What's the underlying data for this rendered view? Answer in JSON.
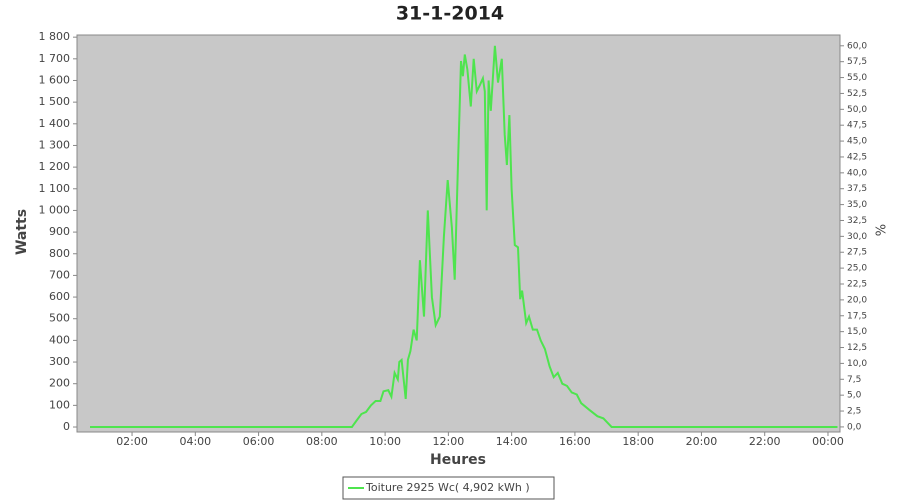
{
  "chart_data": {
    "type": "line",
    "title": "31-1-2014",
    "x_label": "Heures",
    "y_label": "Watts",
    "y2_label": "%",
    "x": [
      0.67,
      8.95,
      9.1,
      9.25,
      9.4,
      9.55,
      9.7,
      9.85,
      9.95,
      10.1,
      10.2,
      10.3,
      10.4,
      10.45,
      10.52,
      10.6,
      10.65,
      10.72,
      10.8,
      10.9,
      11.0,
      11.1,
      11.23,
      11.35,
      11.48,
      11.6,
      11.73,
      11.86,
      11.98,
      12.11,
      12.2,
      12.3,
      12.4,
      12.46,
      12.52,
      12.6,
      12.71,
      12.8,
      12.9,
      13.0,
      13.09,
      13.15,
      13.21,
      13.27,
      13.34,
      13.47,
      13.57,
      13.69,
      13.78,
      13.85,
      13.93,
      14.0,
      14.1,
      14.2,
      14.27,
      14.33,
      14.46,
      14.55,
      14.67,
      14.8,
      14.92,
      15.05,
      15.2,
      15.33,
      15.46,
      15.6,
      15.75,
      15.9,
      16.06,
      16.2,
      16.45,
      16.71,
      16.9,
      17.03,
      17.16,
      24.3
    ],
    "series": [
      {
        "name": "Toiture 2925 Wc( 4,902 kWh )",
        "color": "#4ee44e",
        "values": [
          0,
          0,
          30,
          60,
          70,
          100,
          120,
          120,
          165,
          170,
          140,
          250,
          220,
          300,
          310,
          200,
          130,
          310,
          350,
          450,
          400,
          770,
          510,
          1000,
          600,
          470,
          510,
          880,
          1140,
          920,
          680,
          1200,
          1690,
          1620,
          1720,
          1650,
          1480,
          1700,
          1550,
          1580,
          1610,
          1550,
          1000,
          1600,
          1460,
          1760,
          1590,
          1700,
          1350,
          1210,
          1440,
          1100,
          840,
          830,
          590,
          630,
          480,
          510,
          450,
          450,
          400,
          360,
          280,
          230,
          250,
          200,
          190,
          160,
          150,
          110,
          80,
          50,
          40,
          20,
          0,
          0
        ]
      }
    ],
    "xlim": [
      0.26,
      24.38
    ],
    "xticks": [
      {
        "value": 2,
        "label": "02:00"
      },
      {
        "value": 4,
        "label": "04:00"
      },
      {
        "value": 6,
        "label": "06:00"
      },
      {
        "value": 8,
        "label": "08:00"
      },
      {
        "value": 10,
        "label": "10:00"
      },
      {
        "value": 12,
        "label": "12:00"
      },
      {
        "value": 14,
        "label": "14:00"
      },
      {
        "value": 16,
        "label": "16:00"
      },
      {
        "value": 18,
        "label": "18:00"
      },
      {
        "value": 20,
        "label": "20:00"
      },
      {
        "value": 22,
        "label": "22:00"
      },
      {
        "value": 24,
        "label": "00:00"
      }
    ],
    "ylim": [
      -23,
      1810
    ],
    "yticks": [
      0,
      100,
      200,
      300,
      400,
      500,
      600,
      700,
      800,
      900,
      {
        "value": 1000,
        "label": "1 000"
      },
      {
        "value": 1100,
        "label": "1 100"
      },
      {
        "value": 1200,
        "label": "1 200"
      },
      {
        "value": 1300,
        "label": "1 300"
      },
      {
        "value": 1400,
        "label": "1 400"
      },
      {
        "value": 1500,
        "label": "1 500"
      },
      {
        "value": 1600,
        "label": "1 600"
      },
      {
        "value": 1700,
        "label": "1 700"
      },
      {
        "value": 1800,
        "label": "1 800"
      }
    ],
    "y2lim": [
      -0.8,
      61.7
    ],
    "y2ticks": [
      {
        "value": 0,
        "label": "0,0"
      },
      {
        "value": 2.5,
        "label": "2,5"
      },
      {
        "value": 5,
        "label": "5,0"
      },
      {
        "value": 7.5,
        "label": "7,5"
      },
      {
        "value": 10,
        "label": "10,0"
      },
      {
        "value": 12.5,
        "label": "12,5"
      },
      {
        "value": 15,
        "label": "15,0"
      },
      {
        "value": 17.5,
        "label": "17,5"
      },
      {
        "value": 20,
        "label": "20,0"
      },
      {
        "value": 22.5,
        "label": "22,5"
      },
      {
        "value": 25,
        "label": "25,0"
      },
      {
        "value": 27.5,
        "label": "27,5"
      },
      {
        "value": 30,
        "label": "30,0"
      },
      {
        "value": 32.5,
        "label": "32,5"
      },
      {
        "value": 35,
        "label": "35,0"
      },
      {
        "value": 37.5,
        "label": "37,5"
      },
      {
        "value": 40,
        "label": "40,0"
      },
      {
        "value": 42.5,
        "label": "42,5"
      },
      {
        "value": 45,
        "label": "45,0"
      },
      {
        "value": 47.5,
        "label": "47,5"
      },
      {
        "value": 50,
        "label": "50,0"
      },
      {
        "value": 52.5,
        "label": "52,5"
      },
      {
        "value": 55,
        "label": "55,0"
      },
      {
        "value": 57.5,
        "label": "57,5"
      },
      {
        "value": 60,
        "label": "60,0"
      }
    ],
    "plot_background": "#c8c8c8",
    "grid": false
  }
}
